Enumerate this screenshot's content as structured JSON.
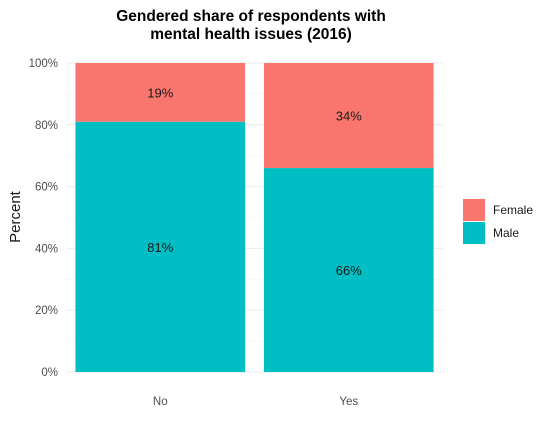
{
  "chart_data": {
    "type": "bar",
    "stacked": true,
    "title_lines": [
      "Gendered share of respondents with",
      "mental health issues (2016)"
    ],
    "xlabel": "",
    "ylabel": "Percent",
    "categories": [
      "No",
      "Yes"
    ],
    "ylim": [
      0,
      1
    ],
    "yticks": [
      {
        "value": 0,
        "label": "0%"
      },
      {
        "value": 0.2,
        "label": "20%"
      },
      {
        "value": 0.4,
        "label": "40%"
      },
      {
        "value": 0.6,
        "label": "60%"
      },
      {
        "value": 0.8,
        "label": "80%"
      },
      {
        "value": 1.0,
        "label": "100%"
      }
    ],
    "series": [
      {
        "name": "Male",
        "color": "#00BFC4",
        "values": [
          0.81,
          0.66
        ],
        "labels": [
          "81%",
          "66%"
        ]
      },
      {
        "name": "Female",
        "color": "#F8766D",
        "values": [
          0.19,
          0.34
        ],
        "labels": [
          "19%",
          "34%"
        ]
      }
    ],
    "legend": {
      "position": "right",
      "entries": [
        {
          "name": "Female",
          "color": "#F8766D"
        },
        {
          "name": "Male",
          "color": "#00BFC4"
        }
      ]
    },
    "grid": true
  }
}
